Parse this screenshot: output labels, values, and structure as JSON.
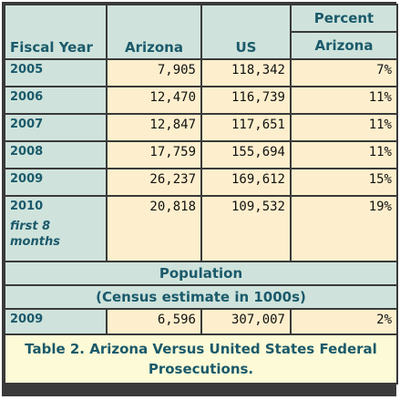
{
  "table": {
    "headers": {
      "fiscal_year": "Fiscal Year",
      "arizona": "Arizona",
      "us": "US",
      "percent": "Percent",
      "percent_sub": "Arizona"
    },
    "rows": [
      {
        "year": "2005",
        "arizona": "7,905",
        "us": "118,342",
        "percent": "7%"
      },
      {
        "year": "2006",
        "arizona": "12,470",
        "us": "116,739",
        "percent": "11%"
      },
      {
        "year": "2007",
        "arizona": "12,847",
        "us": "117,651",
        "percent": "11%"
      },
      {
        "year": "2008",
        "arizona": "17,759",
        "us": "155,694",
        "percent": "11%"
      },
      {
        "year": "2009",
        "arizona": "26,237",
        "us": "169,612",
        "percent": "15%"
      },
      {
        "year": "2010",
        "note": "first 8 months",
        "arizona": "20,818",
        "us": "109,532",
        "percent": "19%"
      }
    ],
    "population": {
      "title": "Population",
      "subtitle": "(Census estimate in 1000s)",
      "row": {
        "year": "2009",
        "arizona": "6,596",
        "us": "307,007",
        "percent": "2%"
      }
    },
    "caption": "Table 2. Arizona Versus United States Federal Prosecutions."
  },
  "colors": {
    "header_bg": "#cfe3dc",
    "header_text": "#1b5a6b",
    "cell_bg": "#fdefcd",
    "caption_bg": "#fdfbd7",
    "border": "#3a3a3a"
  }
}
